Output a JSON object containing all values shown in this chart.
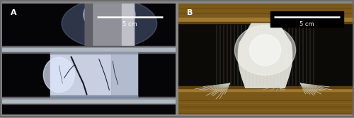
{
  "fig_width": 5.0,
  "fig_height": 1.67,
  "dpi": 100,
  "panel_A_label": "A",
  "panel_B_label": "B",
  "scale_bar_text": "5 cm",
  "fig_bg": "#888888",
  "border_color": "#555555",
  "border_linewidth": 1.0,
  "label_color": "#ffffff",
  "label_fontsize": 8,
  "scalebar_text_color": "#ffffff",
  "scalebar_fontsize": 6,
  "scalebar_line_color": "#ffffff"
}
